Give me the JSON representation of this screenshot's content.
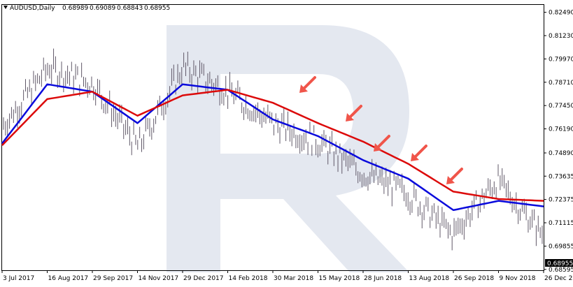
{
  "chart_data": {
    "type": "line",
    "symbol": "AUDUSD,Daily",
    "ohlc": [
      "0.68989",
      "0.69089",
      "0.68843",
      "0.68955"
    ],
    "current_price_label": "0.68955",
    "ylim": [
      0.6855,
      0.8289
    ],
    "y_ticks": [
      "0.82490",
      "0.81230",
      "0.79970",
      "0.78710",
      "0.77450",
      "0.76190",
      "0.74890",
      "0.73635",
      "0.72375",
      "0.71115",
      "0.69855",
      "0.68595"
    ],
    "x_ticks": [
      "3 Jul 2017",
      "16 Aug 2017",
      "29 Sep 2017",
      "14 Nov 2017",
      "29 Dec 2017",
      "14 Feb 2018",
      "30 Mar 2018",
      "15 May 2018",
      "28 Jun 2018",
      "13 Aug 2018",
      "26 Sep 2018",
      "9 Nov 2018",
      "26 Dec 2018"
    ],
    "x": [
      "3 Jul 2017",
      "16 Aug 2017",
      "29 Sep 2017",
      "14 Nov 2017",
      "29 Dec 2017",
      "14 Feb 2018",
      "30 Mar 2018",
      "15 May 2018",
      "28 Jun 2018",
      "13 Aug 2018",
      "26 Sep 2018",
      "9 Nov 2018",
      "26 Dec 2018"
    ],
    "price": [
      0.764,
      0.795,
      0.786,
      0.752,
      0.795,
      0.782,
      0.765,
      0.755,
      0.738,
      0.727,
      0.705,
      0.734,
      0.705
    ],
    "series": [
      {
        "color": "#0a0adc",
        "values": [
          0.754,
          0.786,
          0.782,
          0.765,
          0.786,
          0.783,
          0.767,
          0.758,
          0.745,
          0.735,
          0.718,
          0.723,
          0.72
        ]
      },
      {
        "color": "#dc0a0a",
        "values": [
          0.753,
          0.778,
          0.782,
          0.769,
          0.78,
          0.783,
          0.776,
          0.765,
          0.755,
          0.743,
          0.728,
          0.724,
          0.723
        ]
      }
    ],
    "arrows_color": "#f0554a",
    "grid": false,
    "watermark_color": "#e4e8f0"
  }
}
